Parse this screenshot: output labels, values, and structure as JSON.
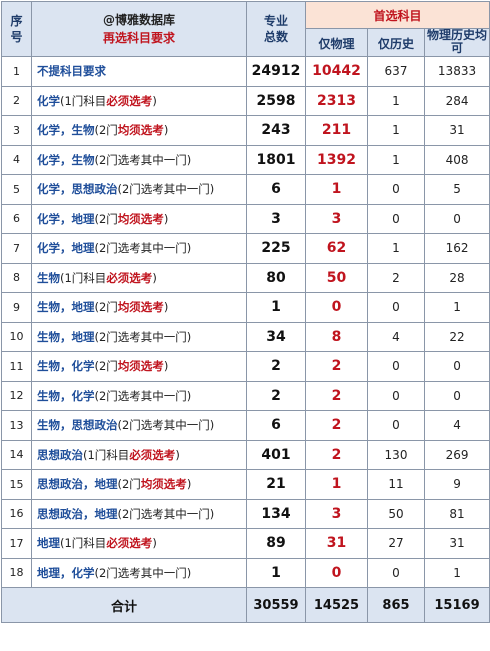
{
  "header": {
    "seq_label": "序号",
    "brand": "@博雅数据库",
    "reselect_title": "再选科目要求",
    "major_total_label": "专业总数",
    "first_select_title": "首选科目",
    "phys_only": "仅物理",
    "hist_only": "仅历史",
    "both": "物理历史均可"
  },
  "rows": [
    {
      "no": "1",
      "names": "不提科目要求",
      "pre": "",
      "kw": "",
      "post": "",
      "total": "24912",
      "phys": "10442",
      "hist": "637",
      "both": "13833"
    },
    {
      "no": "2",
      "names": "化学",
      "pre": "(1门科目",
      "kw": "必须选考",
      "post": ")",
      "total": "2598",
      "phys": "2313",
      "hist": "1",
      "both": "284"
    },
    {
      "no": "3",
      "names": "化学，生物",
      "pre": "(2门",
      "kw": "均须选考",
      "post": ")",
      "total": "243",
      "phys": "211",
      "hist": "1",
      "both": "31"
    },
    {
      "no": "4",
      "names": "化学，生物",
      "pre": "(2门选考其中一门)",
      "kw": "",
      "post": "",
      "total": "1801",
      "phys": "1392",
      "hist": "1",
      "both": "408"
    },
    {
      "no": "5",
      "names": "化学，思想政治",
      "pre": "(2门选考其中一门)",
      "kw": "",
      "post": "",
      "total": "6",
      "phys": "1",
      "hist": "0",
      "both": "5"
    },
    {
      "no": "6",
      "names": "化学，地理",
      "pre": "(2门",
      "kw": "均须选考",
      "post": ")",
      "total": "3",
      "phys": "3",
      "hist": "0",
      "both": "0"
    },
    {
      "no": "7",
      "names": "化学，地理",
      "pre": "(2门选考其中一门)",
      "kw": "",
      "post": "",
      "total": "225",
      "phys": "62",
      "hist": "1",
      "both": "162"
    },
    {
      "no": "8",
      "names": "生物",
      "pre": "(1门科目",
      "kw": "必须选考",
      "post": ")",
      "total": "80",
      "phys": "50",
      "hist": "2",
      "both": "28"
    },
    {
      "no": "9",
      "names": "生物，地理",
      "pre": "(2门",
      "kw": "均须选考",
      "post": ")",
      "total": "1",
      "phys": "0",
      "hist": "0",
      "both": "1"
    },
    {
      "no": "10",
      "names": "生物，地理",
      "pre": "(2门选考其中一门)",
      "kw": "",
      "post": "",
      "total": "34",
      "phys": "8",
      "hist": "4",
      "both": "22"
    },
    {
      "no": "11",
      "names": "生物，化学",
      "pre": "(2门",
      "kw": "均须选考",
      "post": ")",
      "total": "2",
      "phys": "2",
      "hist": "0",
      "both": "0"
    },
    {
      "no": "12",
      "names": "生物，化学",
      "pre": "(2门选考其中一门)",
      "kw": "",
      "post": "",
      "total": "2",
      "phys": "2",
      "hist": "0",
      "both": "0"
    },
    {
      "no": "13",
      "names": "生物，思想政治",
      "pre": "(2门选考其中一门)",
      "kw": "",
      "post": "",
      "total": "6",
      "phys": "2",
      "hist": "0",
      "both": "4"
    },
    {
      "no": "14",
      "names": "思想政治",
      "pre": "(1门科目",
      "kw": "必须选考",
      "post": ")",
      "total": "401",
      "phys": "2",
      "hist": "130",
      "both": "269"
    },
    {
      "no": "15",
      "names": "思想政治，地理",
      "pre": "(2门",
      "kw": "均须选考",
      "post": ")",
      "total": "21",
      "phys": "1",
      "hist": "11",
      "both": "9"
    },
    {
      "no": "16",
      "names": "思想政治，地理",
      "pre": "(2门选考其中一门)",
      "kw": "",
      "post": "",
      "total": "134",
      "phys": "3",
      "hist": "50",
      "both": "81"
    },
    {
      "no": "17",
      "names": "地理",
      "pre": "(1门科目",
      "kw": "必须选考",
      "post": ")",
      "total": "89",
      "phys": "31",
      "hist": "27",
      "both": "31"
    },
    {
      "no": "18",
      "names": "地理，化学",
      "pre": "(2门选考其中一门)",
      "kw": "",
      "post": "",
      "total": "1",
      "phys": "0",
      "hist": "0",
      "both": "1"
    }
  ],
  "footer": {
    "label": "合计",
    "total": "30559",
    "phys": "14525",
    "hist": "865",
    "both": "15169"
  }
}
